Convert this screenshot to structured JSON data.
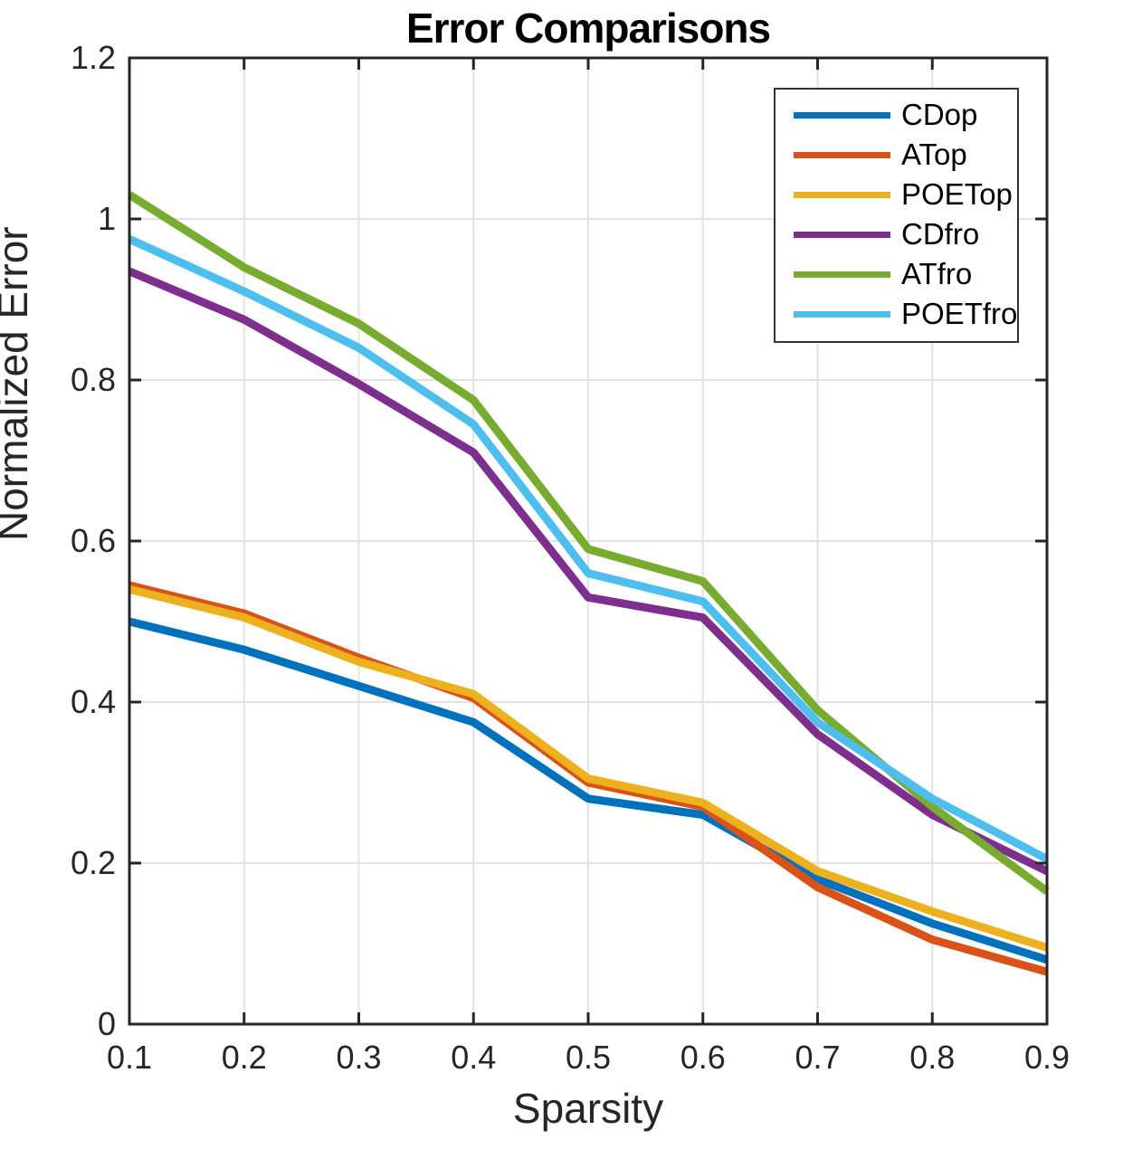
{
  "figure": {
    "axis_color": "#262626",
    "grid_color": "#e2e2e2",
    "background": "#ffffff"
  },
  "chart_data": {
    "type": "line",
    "title": "Error Comparisons",
    "xlabel": "Sparsity",
    "ylabel": "Normalized Error",
    "xlim": [
      0.1,
      0.9
    ],
    "ylim": [
      0,
      1.2
    ],
    "grid": true,
    "legend_position": "top-right",
    "x_ticks": [
      0.1,
      0.2,
      0.3,
      0.4,
      0.5,
      0.6,
      0.7,
      0.8,
      0.9
    ],
    "x_tick_labels": [
      "0.1",
      "0.2",
      "0.3",
      "0.4",
      "0.5",
      "0.6",
      "0.7",
      "0.8",
      "0.9"
    ],
    "y_ticks": [
      0,
      0.2,
      0.4,
      0.6,
      0.8,
      1.0,
      1.2
    ],
    "y_tick_labels": [
      "0",
      "0.2",
      "0.4",
      "0.6",
      "0.8",
      "1",
      "1.2"
    ],
    "x": [
      0.1,
      0.2,
      0.3,
      0.4,
      0.5,
      0.6,
      0.7,
      0.8,
      0.9
    ],
    "series": [
      {
        "name": "CDop",
        "color": "#0072BD",
        "values": [
          0.5,
          0.465,
          0.42,
          0.375,
          0.28,
          0.26,
          0.18,
          0.125,
          0.08
        ]
      },
      {
        "name": "ATop",
        "color": "#D95319",
        "values": [
          0.545,
          0.51,
          0.455,
          0.405,
          0.3,
          0.27,
          0.17,
          0.105,
          0.065
        ]
      },
      {
        "name": "POETop",
        "color": "#EDB120",
        "values": [
          0.54,
          0.505,
          0.45,
          0.41,
          0.305,
          0.275,
          0.19,
          0.14,
          0.095
        ]
      },
      {
        "name": "CDfro",
        "color": "#7E2F8E",
        "values": [
          0.935,
          0.875,
          0.795,
          0.71,
          0.53,
          0.505,
          0.36,
          0.26,
          0.19
        ]
      },
      {
        "name": "ATfro",
        "color": "#77AC30",
        "values": [
          1.03,
          0.94,
          0.87,
          0.775,
          0.59,
          0.55,
          0.39,
          0.27,
          0.165
        ]
      },
      {
        "name": "POETfro",
        "color": "#4DBEEE",
        "values": [
          0.975,
          0.91,
          0.84,
          0.745,
          0.56,
          0.525,
          0.375,
          0.28,
          0.205
        ]
      }
    ]
  }
}
